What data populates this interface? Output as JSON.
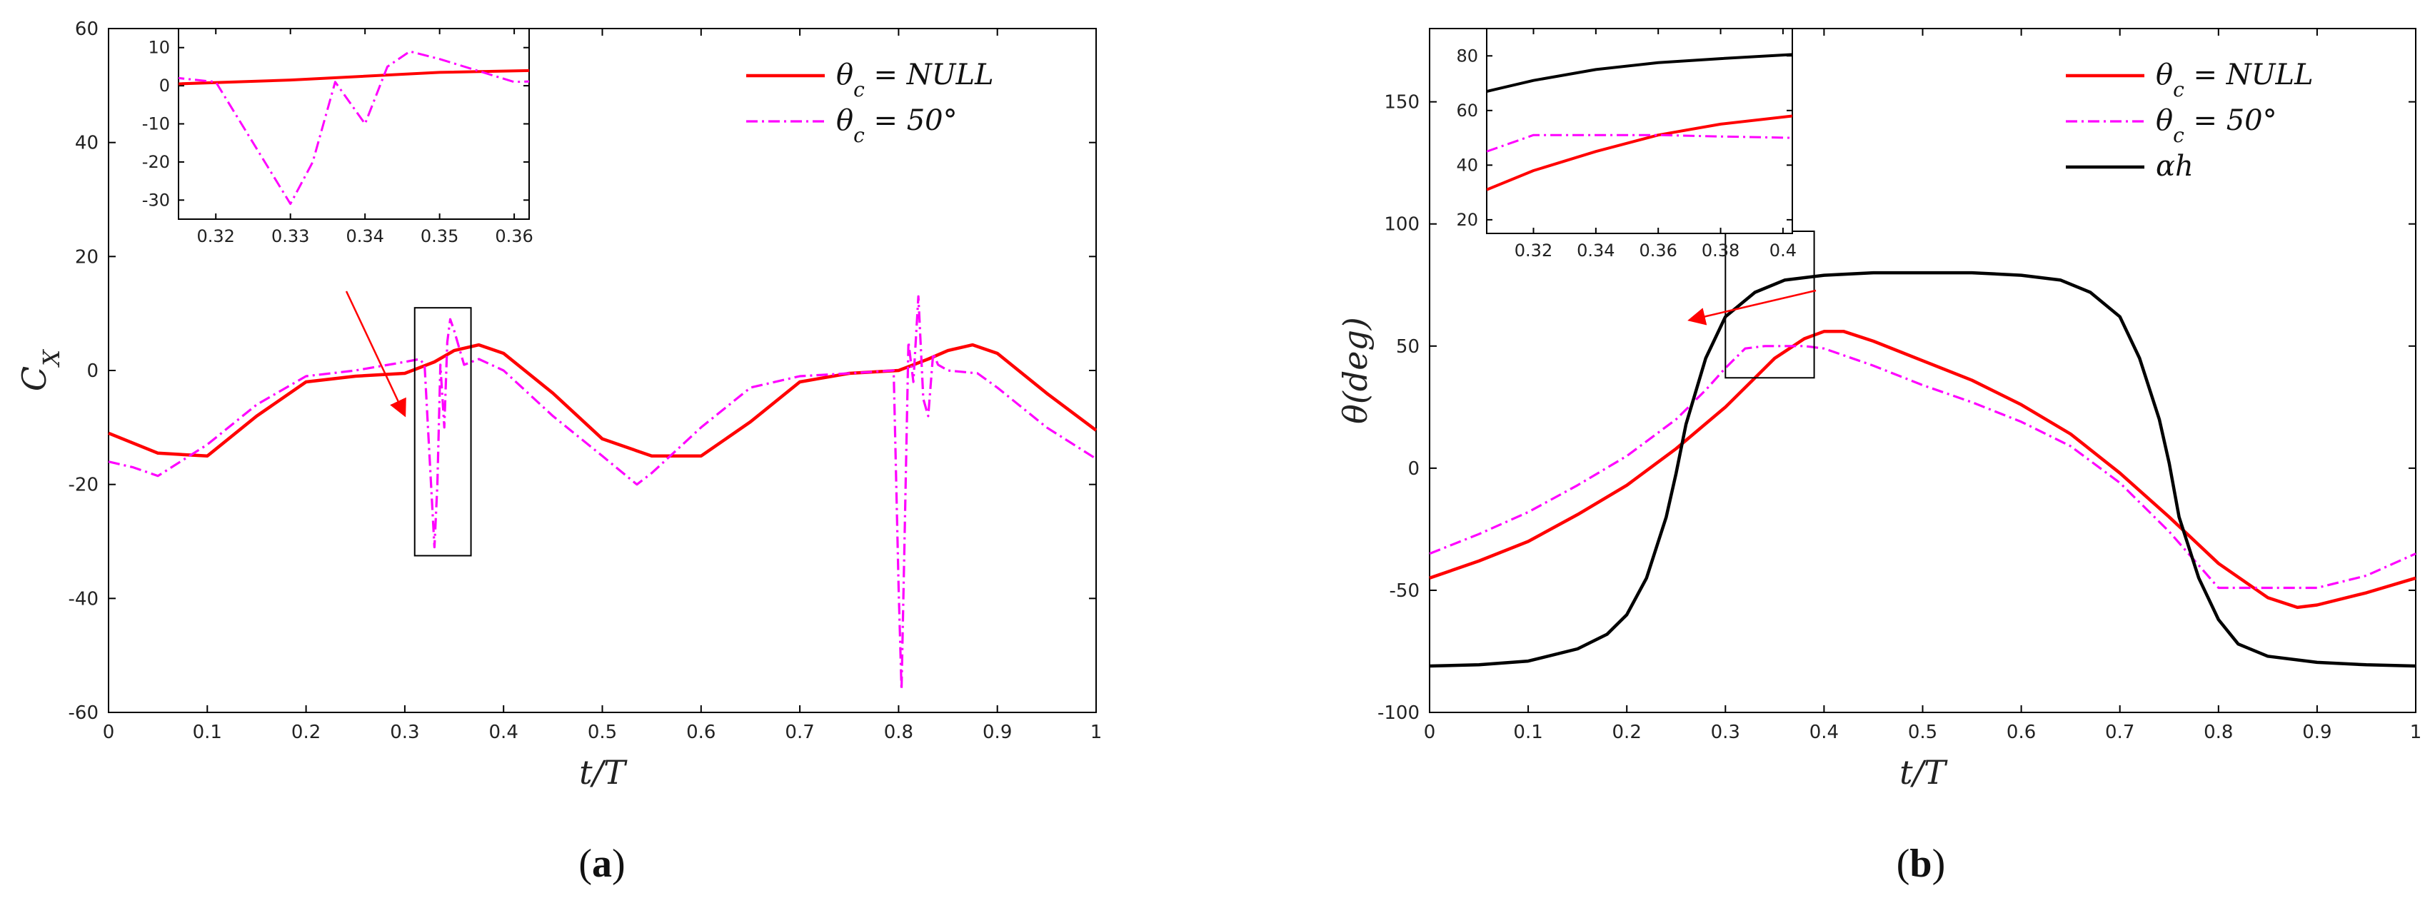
{
  "colors": {
    "nul": "#ff0000",
    "c50": "#ff00ff",
    "alpha": "#000000",
    "arrow": "#ff0000",
    "axis": "#000000"
  },
  "chart_data": [
    {
      "type": "line",
      "caption_label": "a",
      "xlabel": "t/T",
      "ylabel": "C_X",
      "xlim": [
        0,
        1
      ],
      "ylim": [
        -60,
        60
      ],
      "xticks": [
        "0",
        "0.1",
        "0.2",
        "0.3",
        "0.4",
        "0.5",
        "0.6",
        "0.7",
        "0.8",
        "0.9",
        "1"
      ],
      "yticks": [
        "-60",
        "-40",
        "-20",
        "0",
        "20",
        "40",
        "60"
      ],
      "legend": [
        "θ_c = NULL",
        "θ_c = 50°"
      ],
      "legend_position": "top-right",
      "series": [
        {
          "name": "θ_c = NULL",
          "color": "#ff0000",
          "style": "solid",
          "x": [
            0,
            0.05,
            0.1,
            0.15,
            0.2,
            0.25,
            0.3,
            0.33,
            0.35,
            0.375,
            0.4,
            0.45,
            0.5,
            0.55,
            0.6,
            0.65,
            0.7,
            0.75,
            0.8,
            0.83,
            0.85,
            0.875,
            0.9,
            0.95,
            1
          ],
          "y": [
            -11,
            -14.5,
            -15,
            -8,
            -2,
            -1,
            -0.5,
            1.5,
            3.5,
            4.5,
            3,
            -4,
            -12,
            -15,
            -15,
            -9,
            -2,
            -0.5,
            0,
            2,
            3.5,
            4.5,
            3,
            -4,
            -10.5
          ]
        },
        {
          "name": "θ_c = 50°",
          "color": "#ff00ff",
          "style": "dashdot",
          "x": [
            0,
            0.025,
            0.05,
            0.1,
            0.15,
            0.2,
            0.25,
            0.3,
            0.315,
            0.32,
            0.325,
            0.33,
            0.333,
            0.336,
            0.34,
            0.343,
            0.346,
            0.35,
            0.36,
            0.375,
            0.4,
            0.45,
            0.5,
            0.535,
            0.55,
            0.6,
            0.65,
            0.7,
            0.75,
            0.795,
            0.8,
            0.803,
            0.806,
            0.81,
            0.815,
            0.82,
            0.825,
            0.83,
            0.835,
            0.84,
            0.85,
            0.88,
            0.9,
            0.95,
            1
          ],
          "y": [
            -16,
            -17,
            -18.5,
            -13,
            -6,
            -1,
            0,
            1.5,
            2,
            1,
            -15,
            -31,
            -20,
            1,
            -10,
            5,
            9,
            7,
            1,
            2,
            0,
            -8,
            -15,
            -20,
            -18,
            -10,
            -3,
            -1,
            -0.5,
            0,
            -38,
            -56,
            -30,
            5,
            -2,
            13,
            -5,
            -8,
            3,
            1,
            0,
            -0.5,
            -3,
            -10,
            -15.5
          ]
        }
      ],
      "zoom_box": {
        "x": [
          0.31,
          0.367
        ],
        "y": [
          -32.5,
          11
        ]
      },
      "inset": {
        "xlim": [
          0.315,
          0.362
        ],
        "ylim": [
          -35,
          15
        ],
        "xticks": [
          "0.32",
          "0.33",
          "0.34",
          "0.35",
          "0.36"
        ],
        "yticks": [
          "10",
          "0",
          "-10",
          "-20",
          "-30"
        ]
      }
    },
    {
      "type": "line",
      "caption_label": "b",
      "xlabel": "t/T",
      "ylabel": "θ(deg)",
      "xlim": [
        0,
        1
      ],
      "ylim": [
        -100,
        180
      ],
      "xticks": [
        "0",
        "0.1",
        "0.2",
        "0.3",
        "0.4",
        "0.5",
        "0.6",
        "0.7",
        "0.8",
        "0.9",
        "1"
      ],
      "yticks": [
        "-100",
        "-50",
        "0",
        "50",
        "100",
        "150"
      ],
      "legend": [
        "θ_c = NULL",
        "θ_c = 50°",
        "αh"
      ],
      "legend_position": "top-right",
      "series": [
        {
          "name": "θ_c = NULL",
          "color": "#ff0000",
          "style": "solid",
          "x": [
            0,
            0.05,
            0.1,
            0.15,
            0.2,
            0.25,
            0.3,
            0.33,
            0.35,
            0.38,
            0.4,
            0.42,
            0.45,
            0.5,
            0.55,
            0.6,
            0.65,
            0.7,
            0.75,
            0.8,
            0.85,
            0.88,
            0.9,
            0.95,
            1
          ],
          "y": [
            -45,
            -38,
            -30,
            -19,
            -7,
            8,
            25,
            37,
            45,
            53,
            56,
            56,
            52,
            44,
            36,
            26,
            14,
            -2,
            -20,
            -39,
            -53,
            -57,
            -56,
            -51,
            -45
          ]
        },
        {
          "name": "θ_c = 50°",
          "color": "#ff00ff",
          "style": "dashdot",
          "x": [
            0,
            0.05,
            0.1,
            0.15,
            0.2,
            0.25,
            0.28,
            0.3,
            0.32,
            0.34,
            0.36,
            0.38,
            0.4,
            0.45,
            0.5,
            0.55,
            0.6,
            0.65,
            0.7,
            0.75,
            0.8,
            0.85,
            0.9,
            0.95,
            1
          ],
          "y": [
            -35,
            -27,
            -18,
            -7,
            5,
            20,
            32,
            41,
            49,
            50,
            50,
            50,
            49,
            42,
            34,
            27,
            19,
            9,
            -6,
            -26,
            -49,
            -49,
            -49,
            -44,
            -35
          ]
        },
        {
          "name": "αh",
          "color": "#000000",
          "style": "solid",
          "x": [
            0,
            0.05,
            0.1,
            0.15,
            0.18,
            0.2,
            0.22,
            0.24,
            0.25,
            0.26,
            0.28,
            0.3,
            0.33,
            0.36,
            0.4,
            0.45,
            0.5,
            0.55,
            0.6,
            0.64,
            0.67,
            0.7,
            0.72,
            0.74,
            0.75,
            0.76,
            0.78,
            0.8,
            0.82,
            0.85,
            0.9,
            0.95,
            1
          ],
          "y": [
            -81,
            -80.5,
            -79,
            -74,
            -68,
            -60,
            -45,
            -20,
            -2,
            18,
            45,
            62,
            72,
            77,
            79,
            80,
            80,
            80,
            79,
            77,
            72,
            62,
            45,
            20,
            2,
            -20,
            -45,
            -62,
            -72,
            -77,
            -79.5,
            -80.5,
            -81
          ]
        }
      ],
      "zoom_box": {
        "x": [
          0.3,
          0.39
        ],
        "y": [
          37,
          97
        ]
      },
      "inset": {
        "xlim": [
          0.305,
          0.403
        ],
        "ylim": [
          15,
          90
        ],
        "xticks": [
          "0.32",
          "0.34",
          "0.36",
          "0.38",
          "0.4"
        ],
        "yticks": [
          "80",
          "60",
          "40",
          "20"
        ],
        "series": [
          {
            "name": "θ_c = NULL",
            "color": "#ff0000",
            "style": "solid",
            "x": [
              0.305,
              0.32,
              0.34,
              0.36,
              0.38,
              0.403
            ],
            "y": [
              31,
              38,
              45,
              51,
              55,
              58
            ]
          },
          {
            "name": "θ_c = 50°",
            "color": "#ff00ff",
            "style": "dashdot",
            "x": [
              0.305,
              0.315,
              0.32,
              0.34,
              0.36,
              0.38,
              0.403
            ],
            "y": [
              45,
              49,
              51,
              51,
              51,
              50.5,
              50
            ]
          },
          {
            "name": "αh",
            "color": "#000000",
            "style": "solid",
            "x": [
              0.305,
              0.32,
              0.34,
              0.36,
              0.38,
              0.403
            ],
            "y": [
              67,
              71,
              75,
              77.5,
              79,
              80.5
            ]
          }
        ]
      }
    }
  ]
}
